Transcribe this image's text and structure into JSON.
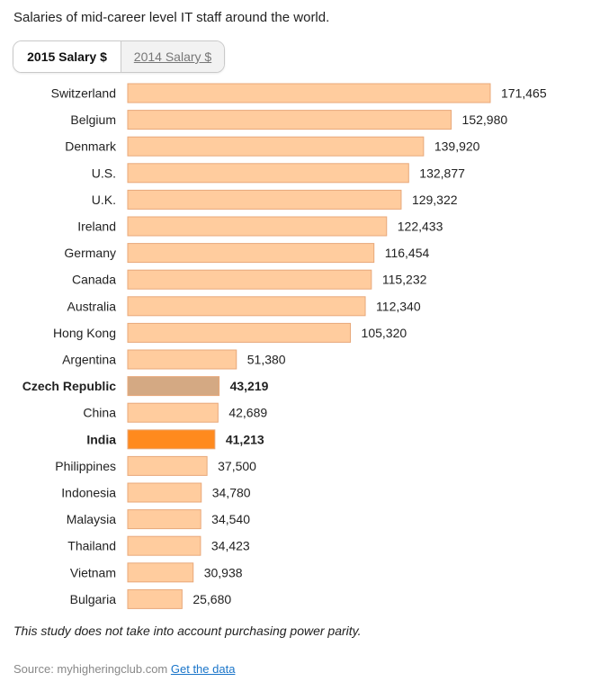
{
  "headline": "Salaries of mid-career level IT staff around the world.",
  "tabs": [
    {
      "label": "2015 Salary $",
      "active": true
    },
    {
      "label": "2014 Salary $",
      "active": false
    }
  ],
  "chart_data": {
    "type": "bar",
    "orientation": "horizontal",
    "categories": [
      "Switzerland",
      "Belgium",
      "Denmark",
      "U.S.",
      "U.K.",
      "Ireland",
      "Germany",
      "Canada",
      "Australia",
      "Hong Kong",
      "Argentina",
      "Czech Republic",
      "China",
      "India",
      "Philippines",
      "Indonesia",
      "Malaysia",
      "Thailand",
      "Vietnam",
      "Bulgaria"
    ],
    "values": [
      171465,
      152980,
      139920,
      132877,
      129322,
      122433,
      116454,
      115232,
      112340,
      105320,
      51380,
      43219,
      42689,
      41213,
      37500,
      34780,
      34540,
      34423,
      30938,
      25680
    ],
    "value_labels": [
      "171,465",
      "152,980",
      "139,920",
      "132,877",
      "129,322",
      "122,433",
      "116,454",
      "115,232",
      "112,340",
      "105,320",
      "51,380",
      "43,219",
      "42,689",
      "41,213",
      "37,500",
      "34,780",
      "34,540",
      "34,423",
      "30,938",
      "25,680"
    ],
    "highlighted": {
      "Czech Republic": "#d4a983",
      "India": "#ff8a1e"
    },
    "bold_categories": [
      "Czech Republic",
      "India"
    ],
    "default_color": "#ffcc9e",
    "border_color": "#e8a87a",
    "xlim": [
      0,
      171465
    ]
  },
  "footnote": "This study does not take into account purchasing power parity.",
  "source": {
    "prefix": "Source: myhigheringclub.com",
    "link_label": "Get the data"
  }
}
